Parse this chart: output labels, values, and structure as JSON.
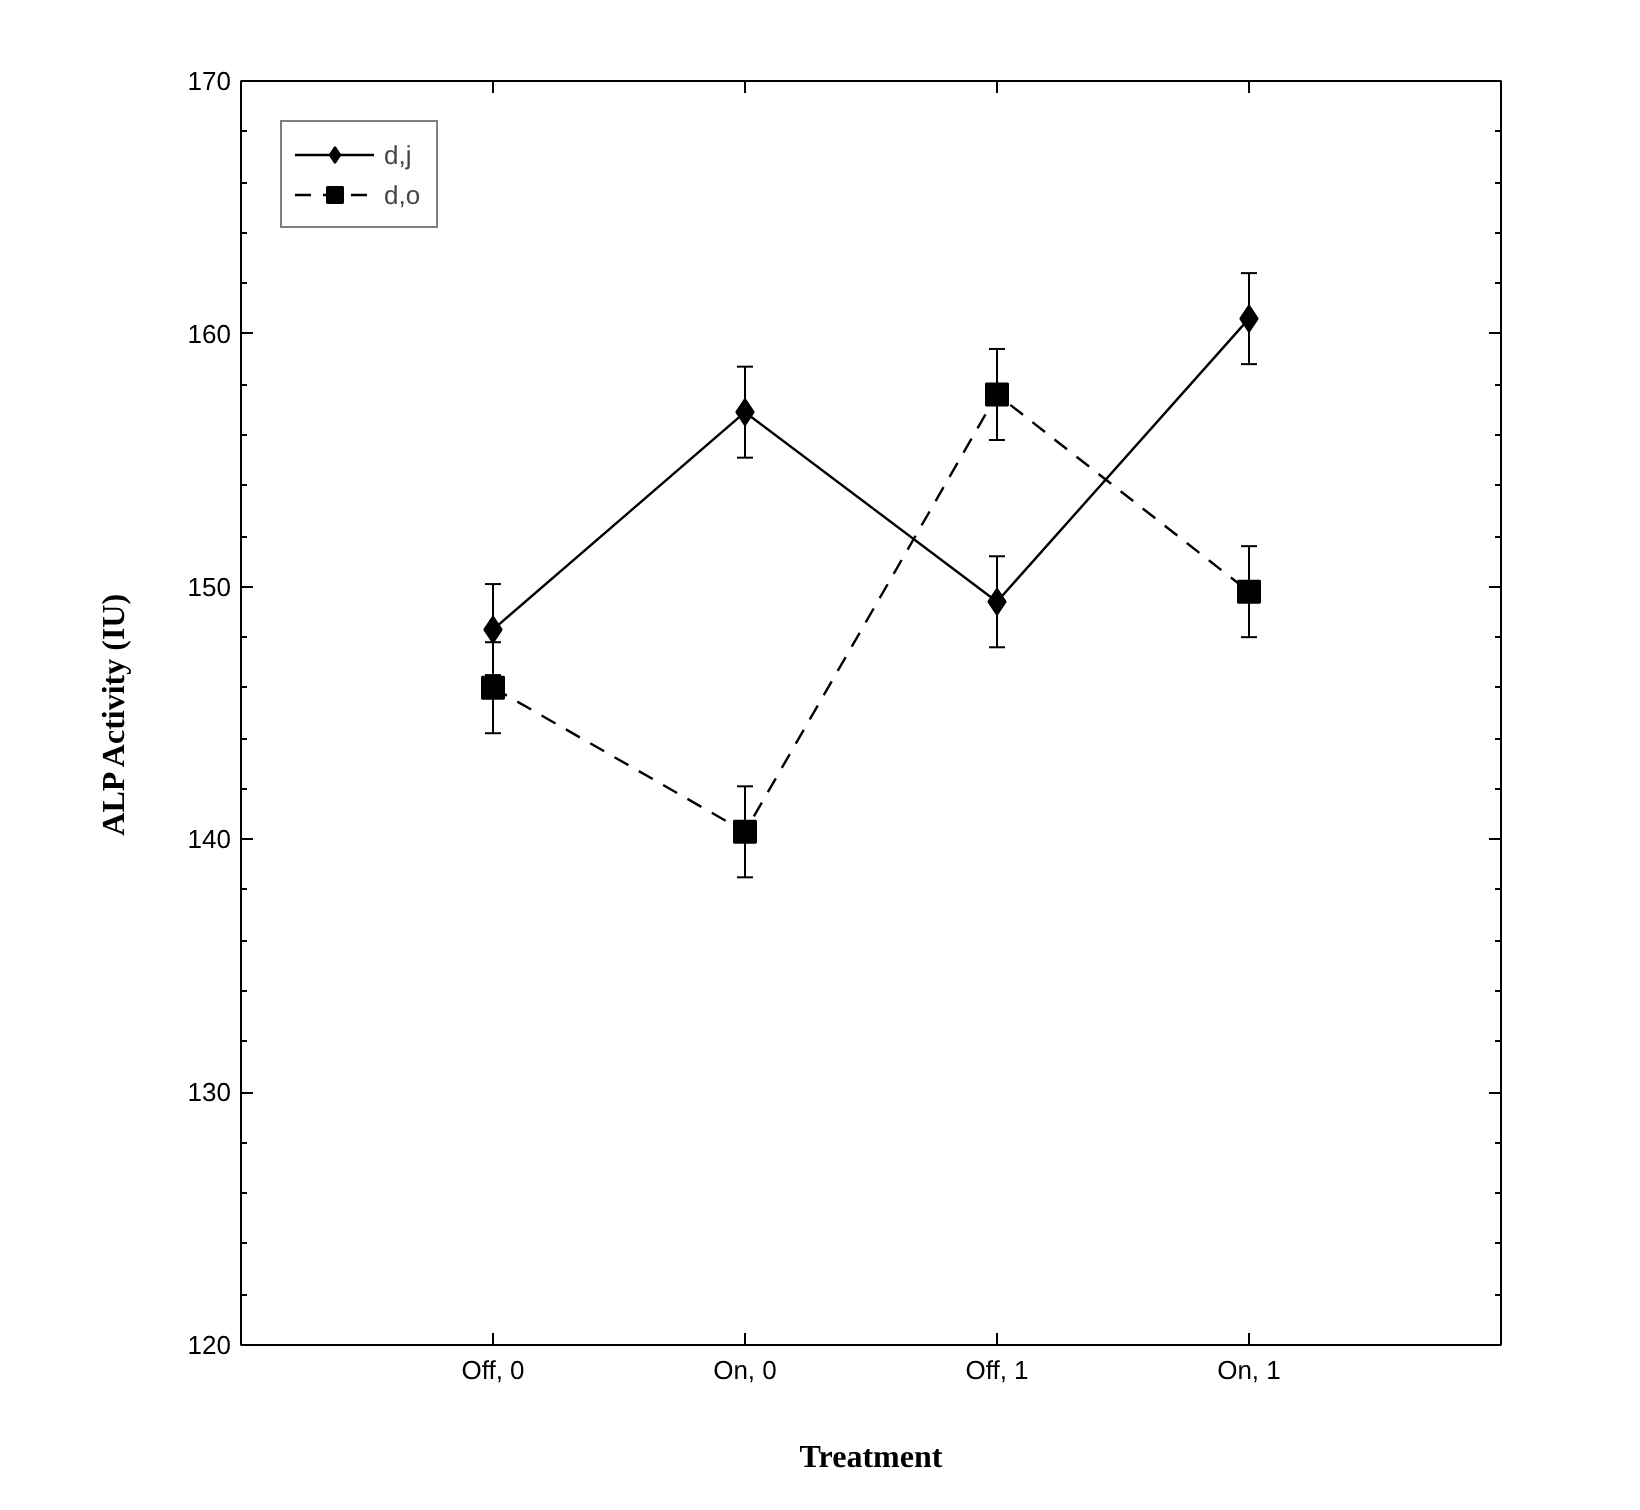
{
  "chart_data": {
    "type": "line",
    "xlabel": "Treatment",
    "ylabel": "ALP Activity (IU)",
    "categories": [
      "Off, 0",
      "On, 0",
      "Off, 1",
      "On, 1"
    ],
    "series": [
      {
        "name": "d,j",
        "color": "#000000",
        "values": [
          148.3,
          156.9,
          149.4,
          160.6
        ],
        "errors": [
          1.8,
          1.8,
          1.8,
          1.8
        ],
        "marker": "diamond",
        "line_style": "solid"
      },
      {
        "name": "d,o",
        "color": "#000000",
        "values": [
          146.0,
          140.3,
          157.6,
          149.8
        ],
        "errors": [
          1.8,
          1.8,
          1.8,
          1.8
        ],
        "marker": "square",
        "line_style": "dashed"
      }
    ],
    "ylim": [
      120,
      170
    ],
    "yticks": [
      120,
      130,
      140,
      150,
      160,
      170
    ],
    "grid": false,
    "legend": "top left"
  }
}
